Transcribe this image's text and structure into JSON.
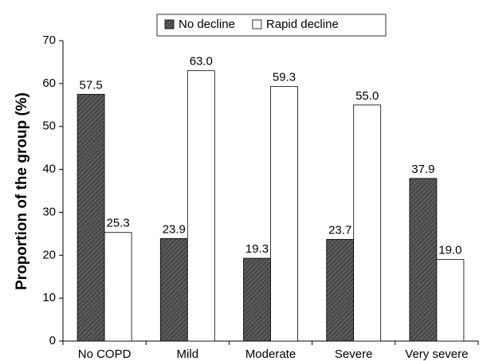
{
  "chart_data": {
    "type": "bar",
    "y_label": "Proportion of the group (%)",
    "categories": [
      "No COPD",
      "Mild",
      "Moderate",
      "Severe",
      "Very severe"
    ],
    "series": [
      {
        "name": "No decline",
        "color": "#5a5a5a",
        "hatch": true,
        "values": [
          57.5,
          23.9,
          19.3,
          23.7,
          37.9
        ],
        "value_labels": [
          "57.5",
          "23.9",
          "19.3",
          "23.7",
          "37.9"
        ]
      },
      {
        "name": "Rapid decline",
        "color": "#ffffff",
        "hatch": false,
        "values": [
          25.3,
          63.0,
          59.3,
          55.0,
          19.0
        ],
        "value_labels": [
          "25.3",
          "63.0",
          "59.3",
          "55.0",
          "19.0"
        ]
      }
    ],
    "ylim": [
      0,
      70
    ],
    "yticks": [
      0,
      10,
      20,
      30,
      40,
      50,
      60,
      70
    ],
    "legend": "top",
    "grid": false
  }
}
